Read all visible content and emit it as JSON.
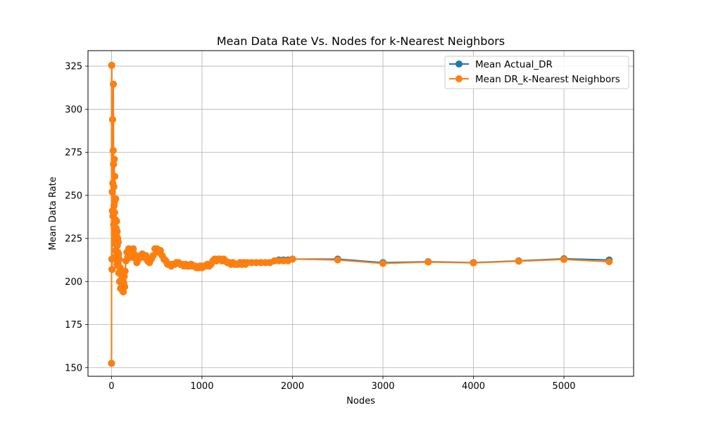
{
  "chart_data": {
    "type": "line",
    "title": "Mean Data Rate Vs. Nodes for k-Nearest Neighbors",
    "xlabel": "Nodes",
    "ylabel": "Mean Data Rate",
    "xlim": [
      -260,
      5770
    ],
    "ylim": [
      145,
      334
    ],
    "xticks": [
      0,
      1000,
      2000,
      3000,
      4000,
      5000
    ],
    "yticks": [
      150,
      175,
      200,
      225,
      250,
      275,
      300,
      325
    ],
    "grid": true,
    "legend_position": "top-right",
    "series": [
      {
        "name": "Mean Actual_DR",
        "color": "#1f77b4",
        "x": [
          0,
          2,
          4,
          6,
          8,
          10,
          12,
          14,
          16,
          18,
          20,
          22,
          24,
          26,
          28,
          30,
          32,
          34,
          36,
          38,
          40,
          42,
          44,
          46,
          48,
          50,
          52,
          54,
          56,
          58,
          60,
          62,
          64,
          66,
          68,
          70,
          72,
          74,
          76,
          78,
          80,
          85,
          90,
          95,
          100,
          105,
          110,
          115,
          120,
          125,
          130,
          135,
          140,
          145,
          150,
          160,
          170,
          180,
          190,
          200,
          210,
          220,
          230,
          240,
          250,
          260,
          270,
          280,
          290,
          300,
          320,
          340,
          360,
          380,
          400,
          420,
          440,
          460,
          480,
          500,
          520,
          540,
          560,
          580,
          600,
          620,
          640,
          660,
          680,
          700,
          720,
          740,
          760,
          780,
          800,
          820,
          840,
          860,
          880,
          900,
          920,
          940,
          960,
          980,
          1000,
          1020,
          1040,
          1060,
          1080,
          1100,
          1120,
          1140,
          1160,
          1180,
          1200,
          1220,
          1240,
          1260,
          1280,
          1300,
          1320,
          1340,
          1360,
          1380,
          1400,
          1420,
          1440,
          1460,
          1480,
          1500,
          1550,
          1600,
          1650,
          1700,
          1750,
          1800,
          1850,
          1900,
          1950,
          2000,
          2500,
          3000,
          3500,
          4000,
          4500,
          5000,
          5500
        ],
        "y": [
          152.5,
          325.5,
          213,
          207,
          252,
          241,
          294,
          257,
          238,
          276,
          314.5,
          268,
          233,
          255,
          244,
          271,
          246,
          240,
          261,
          229,
          222,
          236,
          226,
          248,
          218,
          231,
          224,
          215,
          235,
          226,
          210,
          229,
          221,
          213,
          225,
          217,
          211,
          223,
          209,
          216,
          205,
          213,
          200,
          208,
          196,
          205,
          199,
          203,
          195,
          201,
          194,
          199,
          203,
          197,
          206,
          212,
          217,
          214,
          219,
          215,
          214,
          216,
          218,
          219,
          216,
          214,
          213,
          211,
          214,
          213,
          215,
          216,
          214,
          215,
          212,
          211,
          213,
          215,
          219,
          219,
          217,
          218,
          215,
          213,
          212,
          210,
          210,
          209,
          210,
          210,
          211,
          211,
          210,
          210,
          209,
          210,
          209,
          209,
          210,
          209,
          209,
          208,
          208,
          209,
          208,
          209,
          209,
          210,
          209,
          210,
          212,
          213,
          212,
          213,
          213,
          212,
          213,
          212,
          211,
          211,
          210,
          211,
          210,
          210,
          210,
          211,
          210,
          211,
          210,
          211,
          211,
          211,
          211,
          211,
          211,
          212,
          212.5,
          212.5,
          212.5,
          213,
          213,
          211,
          211.5,
          211,
          212,
          213.2,
          212.5
        ]
      },
      {
        "name": "Mean DR_k-Nearest Neighbors",
        "color": "#ff7f0e",
        "x": [
          0,
          2,
          4,
          6,
          8,
          10,
          12,
          14,
          16,
          18,
          20,
          22,
          24,
          26,
          28,
          30,
          32,
          34,
          36,
          38,
          40,
          42,
          44,
          46,
          48,
          50,
          52,
          54,
          56,
          58,
          60,
          62,
          64,
          66,
          68,
          70,
          72,
          74,
          76,
          78,
          80,
          85,
          90,
          95,
          100,
          105,
          110,
          115,
          120,
          125,
          130,
          135,
          140,
          145,
          150,
          160,
          170,
          180,
          190,
          200,
          210,
          220,
          230,
          240,
          250,
          260,
          270,
          280,
          290,
          300,
          320,
          340,
          360,
          380,
          400,
          420,
          440,
          460,
          480,
          500,
          520,
          540,
          560,
          580,
          600,
          620,
          640,
          660,
          680,
          700,
          720,
          740,
          760,
          780,
          800,
          820,
          840,
          860,
          880,
          900,
          920,
          940,
          960,
          980,
          1000,
          1020,
          1040,
          1060,
          1080,
          1100,
          1120,
          1140,
          1160,
          1180,
          1200,
          1220,
          1240,
          1260,
          1280,
          1300,
          1320,
          1340,
          1360,
          1380,
          1400,
          1420,
          1440,
          1460,
          1480,
          1500,
          1550,
          1600,
          1650,
          1700,
          1750,
          1800,
          1850,
          1900,
          1950,
          2000,
          2500,
          3000,
          3500,
          4000,
          4500,
          5000,
          5500
        ],
        "y": [
          152.5,
          325.5,
          213,
          207,
          252,
          241,
          294,
          257,
          238,
          276,
          314.5,
          268,
          233,
          255,
          244,
          271,
          246,
          240,
          261,
          229,
          222,
          236,
          226,
          248,
          218,
          231,
          224,
          215,
          235,
          226,
          210,
          229,
          221,
          213,
          225,
          217,
          211,
          223,
          209,
          216,
          205,
          213,
          200,
          208,
          196,
          205,
          199,
          203,
          195,
          201,
          194,
          199,
          203,
          197,
          206,
          212,
          217,
          214,
          219,
          215,
          214,
          216,
          218,
          219,
          216,
          214,
          213,
          211,
          214,
          213,
          215,
          216,
          214,
          215,
          212,
          211,
          213,
          215,
          219,
          219,
          217,
          218,
          215,
          213,
          212,
          210,
          210,
          209,
          210,
          210,
          211,
          211,
          210,
          210,
          209,
          210,
          209,
          209,
          210,
          209,
          209,
          208,
          208,
          209,
          208,
          209,
          209,
          210,
          209,
          210,
          212,
          213,
          212,
          213,
          213,
          212,
          213,
          212,
          211,
          211,
          210,
          211,
          210,
          210,
          210,
          211,
          210,
          211,
          210,
          211,
          211,
          211,
          211,
          211,
          211,
          212,
          212,
          212,
          212,
          213,
          212.5,
          210.5,
          211.3,
          210.8,
          211.8,
          212.8,
          211.5
        ]
      }
    ]
  }
}
